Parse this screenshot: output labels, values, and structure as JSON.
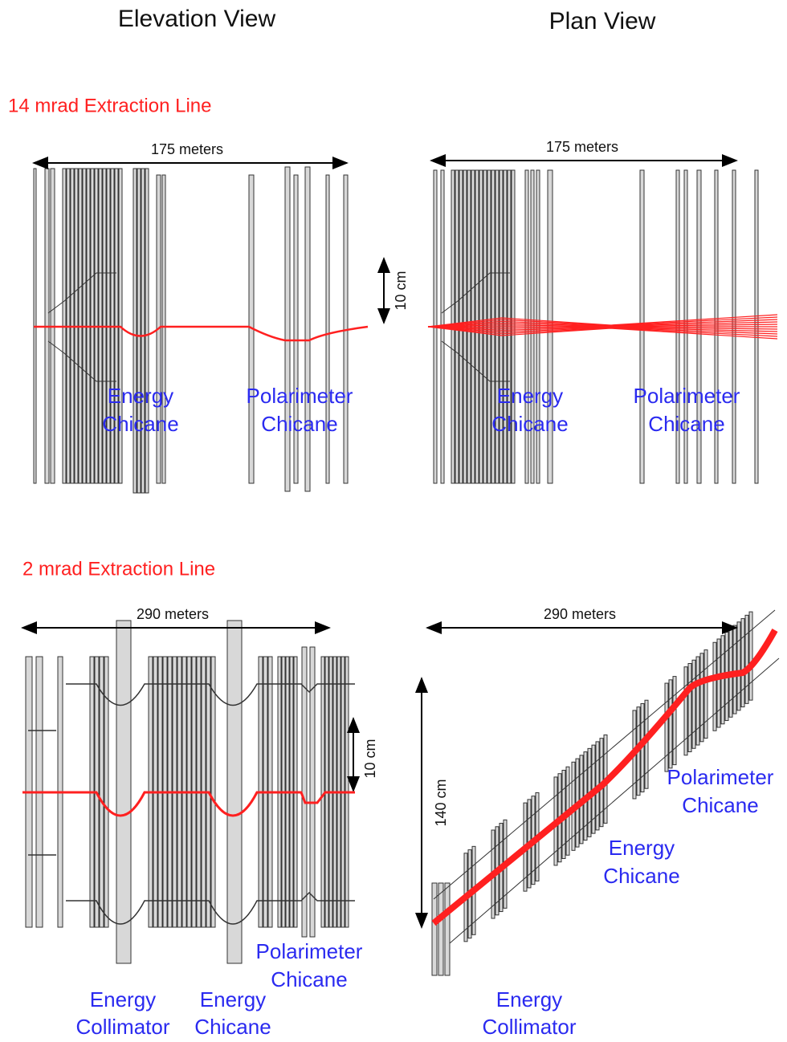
{
  "headers": [
    "Elevation View",
    "Plan View"
  ],
  "top": {
    "title": "14 mrad Extraction Line",
    "elevation": {
      "length": "175 meters",
      "height": "10 cm",
      "labels": [
        [
          "Energy",
          "Chicane"
        ],
        [
          "Polarimeter",
          "Chicane"
        ]
      ]
    },
    "plan": {
      "length": "175 meters",
      "labels": [
        [
          "Energy",
          "Chicane"
        ],
        [
          "Polarimeter",
          "Chicane"
        ]
      ]
    }
  },
  "bottom": {
    "title": "2 mrad Extraction Line",
    "elevation": {
      "length": "290 meters",
      "height": "10 cm",
      "labels": [
        [
          "Energy",
          "Collimator"
        ],
        [
          "Energy",
          "Chicane"
        ],
        [
          "Polarimeter",
          "Chicane"
        ]
      ]
    },
    "plan": {
      "length": "290 meters",
      "height": "140 cm",
      "labels": [
        [
          "Energy",
          "Collimator"
        ],
        [
          "Energy",
          "Chicane"
        ],
        [
          "Polarimeter",
          "Chicane"
        ]
      ]
    }
  }
}
